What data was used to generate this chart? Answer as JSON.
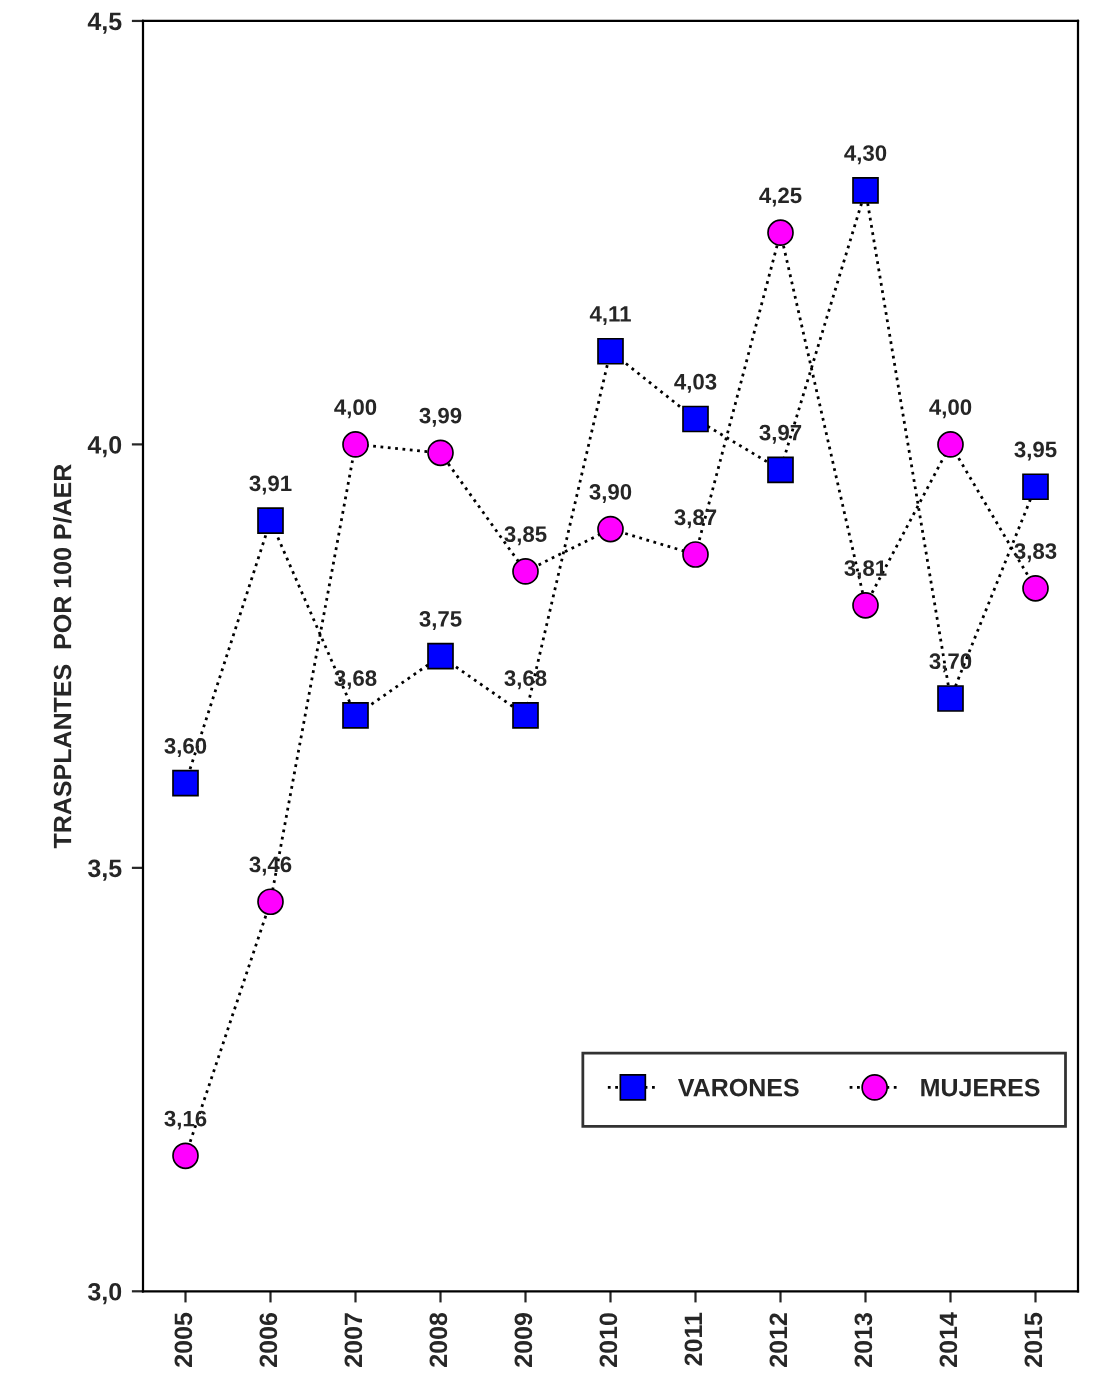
{
  "chart_data": {
    "type": "line",
    "ylabel": "TRASPLANTES  POR 100 P/AER",
    "categories": [
      "2005",
      "2006",
      "2007",
      "2008",
      "2009",
      "2010",
      "2011",
      "2012",
      "2013",
      "2014",
      "2015"
    ],
    "series": [
      {
        "name": "VARONES",
        "color": "#0000ff",
        "marker": "square",
        "values": [
          3.6,
          3.91,
          3.68,
          3.75,
          3.68,
          4.11,
          4.03,
          3.97,
          4.3,
          3.7,
          3.95
        ],
        "value_labels": [
          "3,60",
          "3,91",
          "3,68",
          "3,75",
          "3,68",
          "4,11",
          "4,03",
          "3,97",
          "4,30",
          "3,70",
          "3,95"
        ]
      },
      {
        "name": "MUJERES",
        "color": "#ff00ff",
        "marker": "circle",
        "values": [
          3.16,
          3.46,
          4.0,
          3.99,
          3.85,
          3.9,
          3.87,
          4.25,
          3.81,
          4.0,
          3.83
        ],
        "value_labels": [
          "3,16",
          "3,46",
          "4,00",
          "3,99",
          "3,85",
          "3,90",
          "3,87",
          "4,25",
          "3,81",
          "4,00",
          "3,83"
        ]
      }
    ],
    "ylim": [
      3.0,
      4.5
    ],
    "yticks": [
      {
        "value": 3.0,
        "label": "3,0"
      },
      {
        "value": 3.5,
        "label": "3,5"
      },
      {
        "value": 4.0,
        "label": "4,0"
      },
      {
        "value": 4.5,
        "label": "4,5"
      }
    ],
    "grid": false,
    "legend": "bottom right",
    "line_style": "dotted"
  }
}
